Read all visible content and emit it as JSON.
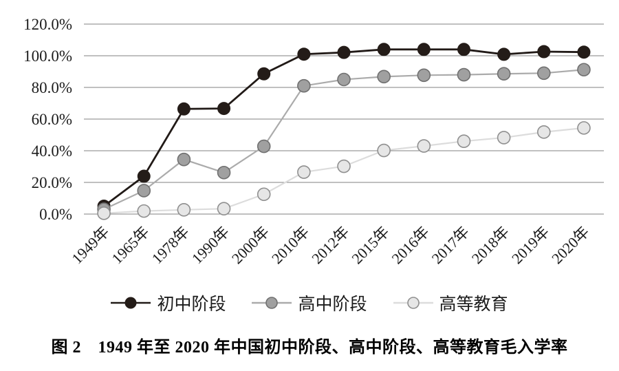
{
  "figure": {
    "caption": "图 2　1949 年至 2020 年中国初中阶段、高中阶段、高等教育毛入学率"
  },
  "chart_data": {
    "type": "line",
    "title": "",
    "xlabel": "",
    "ylabel": "",
    "categories": [
      "1949年",
      "1965年",
      "1978年",
      "1990年",
      "2000年",
      "2010年",
      "2012年",
      "2015年",
      "2016年",
      "2017年",
      "2018年",
      "2019年",
      "2020年"
    ],
    "series": [
      {
        "id": "junior-secondary",
        "name": "初中阶段",
        "values": [
          5.0,
          23.9,
          66.4,
          66.7,
          88.6,
          101.0,
          102.1,
          104.0,
          104.0,
          104.0,
          100.9,
          102.6,
          102.3
        ],
        "line_color": "#211a17",
        "marker_fill": "#241c18",
        "marker_stroke": "#241c18"
      },
      {
        "id": "senior-secondary",
        "name": "高中阶段",
        "values": [
          3.0,
          14.8,
          34.5,
          26.2,
          42.8,
          81.0,
          85.0,
          86.8,
          87.7,
          88.0,
          88.6,
          89.0,
          91.2
        ],
        "line_color": "#ababab",
        "marker_fill": "#a0a0a0",
        "marker_stroke": "#707070"
      },
      {
        "id": "higher-education",
        "name": "高等教育",
        "values": [
          0.5,
          1.9,
          2.7,
          3.4,
          12.5,
          26.5,
          30.2,
          40.2,
          43.0,
          46.0,
          48.3,
          51.8,
          54.4
        ],
        "line_color": "#dcdcdc",
        "marker_fill": "#e6e6e6",
        "marker_stroke": "#8f8f8f"
      }
    ],
    "ylim": [
      0,
      120
    ],
    "ytick_step": 20,
    "ytick_labels": [
      "0.0%",
      "20.0%",
      "40.0%",
      "60.0%",
      "80.0%",
      "100.0%",
      "120.0%"
    ],
    "grid": true,
    "gridline_color": "#808080",
    "legend_position": "bottom"
  }
}
